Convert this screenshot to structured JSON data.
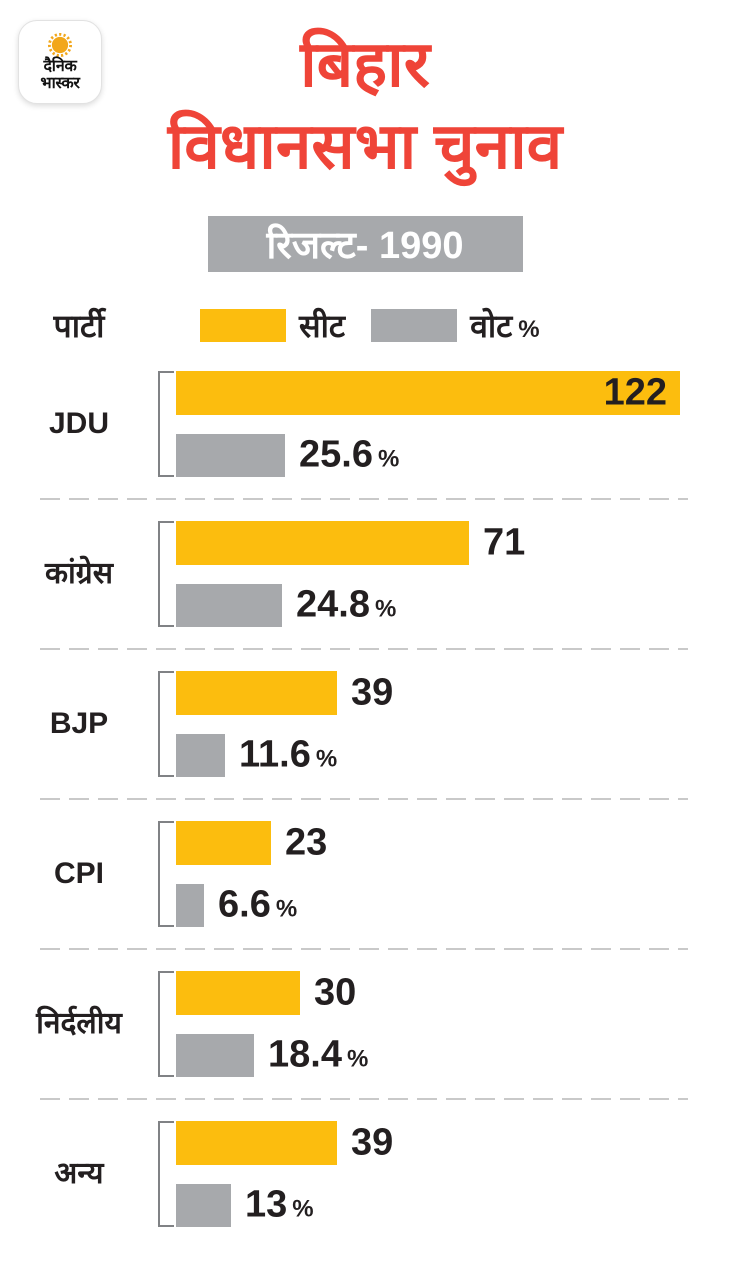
{
  "logo": {
    "line1": "दैनिक",
    "line2": "भास्कर"
  },
  "header": {
    "title_line1": "बिहार",
    "title_line2": "विधानसभा चुनाव"
  },
  "subtitle": {
    "text": "रिजल्ट- 1990"
  },
  "legend": {
    "party_label": "पार्टी",
    "seat_label": "सीट",
    "vote_label": "वोट",
    "percent_sign": "%"
  },
  "colors": {
    "seat_bar": "#FCBD0E",
    "vote_bar": "#A7A9AC",
    "title_red": "#EF4438",
    "text_dark": "#231F20",
    "band_gray": "#A7A9AC",
    "sun_orange": "#F2A71B"
  },
  "chart_data": {
    "type": "bar",
    "orientation": "horizontal",
    "title": "बिहार विधानसभा चुनाव — रिजल्ट- 1990",
    "legend_position": "top",
    "grid": false,
    "series": [
      {
        "name": "सीट",
        "color": "#FCBD0E"
      },
      {
        "name": "वोट %",
        "color": "#A7A9AC"
      }
    ],
    "seat_axis_max": 122,
    "vote_axis_max": 25.6,
    "rows": [
      {
        "party": "JDU",
        "seats": 122,
        "seats_label": "122",
        "vote_pct": 25.6,
        "vote_label": "25.6",
        "value_inside": true
      },
      {
        "party": "कांग्रेस",
        "seats": 71,
        "seats_label": "71",
        "vote_pct": 24.8,
        "vote_label": "24.8"
      },
      {
        "party": "BJP",
        "seats": 39,
        "seats_label": "39",
        "vote_pct": 11.6,
        "vote_label": "11.6"
      },
      {
        "party": "CPI",
        "seats": 23,
        "seats_label": "23",
        "vote_pct": 6.6,
        "vote_label": "6.6"
      },
      {
        "party": "निर्दलीय",
        "seats": 30,
        "seats_label": "30",
        "vote_pct": 18.4,
        "vote_label": "18.4"
      },
      {
        "party": "अन्य",
        "seats": 39,
        "seats_label": "39",
        "vote_pct": 13,
        "vote_label": "13"
      }
    ]
  }
}
